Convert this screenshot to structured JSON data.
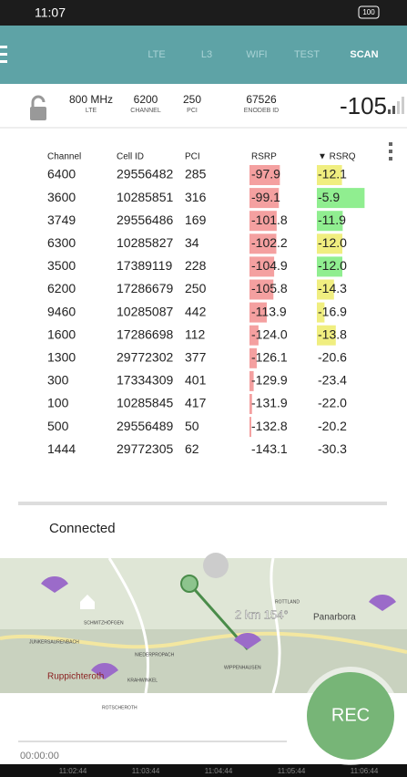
{
  "status_bar": {
    "time": "11:07",
    "battery": "100"
  },
  "tabs": [
    "LTE",
    "L3",
    "WIFI",
    "TEST",
    "SCAN"
  ],
  "active_tab": 4,
  "serving": {
    "fields": [
      {
        "value": "800 MHz",
        "label": "LTE"
      },
      {
        "value": "6200",
        "label": "CHANNEL"
      },
      {
        "value": "250",
        "label": "PCI"
      },
      {
        "value": "67526",
        "label": "ENODEB ID"
      }
    ],
    "rsrp": "-105"
  },
  "table": {
    "columns": [
      "Channel",
      "Cell ID",
      "PCI",
      "RSRP",
      "▼ RSRQ"
    ],
    "rows": [
      [
        "6400",
        "29556482",
        "285",
        "-97.9",
        "-12.1"
      ],
      [
        "3600",
        "10285851",
        "316",
        "-99.1",
        "-5.9"
      ],
      [
        "3749",
        "29556486",
        "169",
        "-101.8",
        "-11.9"
      ],
      [
        "6300",
        "10285827",
        "34",
        "-102.2",
        "-12.0"
      ],
      [
        "3500",
        "17389119",
        "228",
        "-104.9",
        "-12.0"
      ],
      [
        "6200",
        "17286679",
        "250",
        "-105.8",
        "-14.3"
      ],
      [
        "9460",
        "10285087",
        "442",
        "-113.9",
        "-16.9"
      ],
      [
        "1600",
        "17286698",
        "112",
        "-124.0",
        "-13.8"
      ],
      [
        "1300",
        "29772302",
        "377",
        "-126.1",
        "-20.6"
      ],
      [
        "300",
        "17334309",
        "401",
        "-129.9",
        "-23.4"
      ],
      [
        "100",
        "10285845",
        "417",
        "-131.9",
        "-22.0"
      ],
      [
        "500",
        "29556489",
        "50",
        "-132.8",
        "-20.2"
      ],
      [
        "1444",
        "29772305",
        "62",
        "-143.1",
        "-30.3"
      ]
    ],
    "rsrp_color": "#f4a0a0",
    "rsrq_colors": [
      "#f0ee80",
      "#90ee90",
      "#90ee90",
      "#f0ee80",
      "#90ee90",
      "#f0ee80",
      "#f0ee80",
      "#f0ee80",
      null,
      null,
      null,
      null,
      null
    ]
  },
  "status": "Connected",
  "map": {
    "distance": "2 km  154°",
    "places": [
      "SCHMITZHÖFGEN",
      "JUNKERSAURENBACH",
      "NIEDERPROPACH",
      "WIPPENHAUSEN",
      "Ruppichteroth",
      "KRAHWINKEL",
      "ROTSCHEROTH",
      "ROTTLAND",
      "Panarbora"
    ]
  },
  "rec": "REC",
  "elapsed": "00:00:00",
  "timeline": [
    "11:02:44",
    "11:03:44",
    "11:04:44",
    "11:05:44",
    "11:06:44"
  ]
}
